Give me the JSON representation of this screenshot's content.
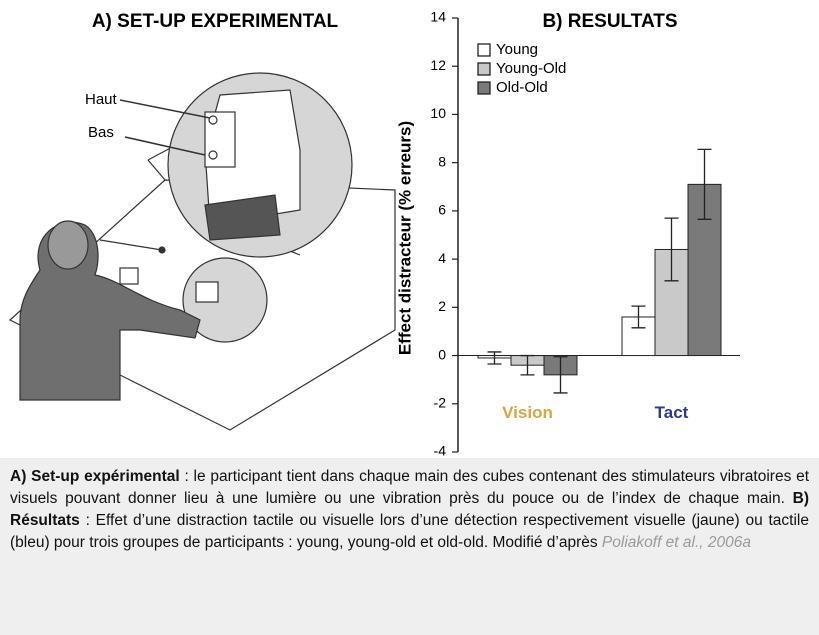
{
  "panel_a": {
    "title": "A) SET-UP EXPERIMENTAL",
    "label_top": "Haut",
    "label_bottom": "Bas"
  },
  "chart_data": {
    "type": "bar",
    "title": "B) RESULTATS",
    "y_label": "Effect distracteur (% erreurs)",
    "categories": [
      "Vision",
      "Tact"
    ],
    "category_colors": [
      "#d9a441",
      "#2b3a8c"
    ],
    "series": [
      {
        "name": "Young",
        "color": "#ffffff",
        "values": [
          -0.1,
          1.6
        ],
        "errors": [
          0.25,
          0.45
        ]
      },
      {
        "name": "Young-Old",
        "color": "#c9c9c9",
        "values": [
          -0.4,
          4.4
        ],
        "errors": [
          0.4,
          1.3
        ]
      },
      {
        "name": "Old-Old",
        "color": "#7a7a7a",
        "values": [
          -0.8,
          7.1
        ],
        "errors": [
          0.75,
          1.45
        ]
      }
    ],
    "ylim": [
      -4,
      14
    ],
    "yticks": [
      -4,
      -2,
      0,
      2,
      4,
      6,
      8,
      10,
      12,
      14
    ],
    "legend": "upper left"
  },
  "caption": {
    "a_label": "A) Set-up expérimental",
    "a_text": " : le participant tient dans chaque main des cubes contenant des stimulateurs vibratoires et visuels pouvant donner lieu à une lumière ou une vibration près du pouce ou de l’index de chaque main. ",
    "b_label": "B) Résultats",
    "b_text": " : Effet d’une distraction tactile ou visuelle lors d’une détection respectivement visuelle (jaune) ou tactile (bleu) pour trois groupes de participants : young, young-old et old-old. Modifié d’après ",
    "citation": "Poliakoff et al., 2006a"
  }
}
